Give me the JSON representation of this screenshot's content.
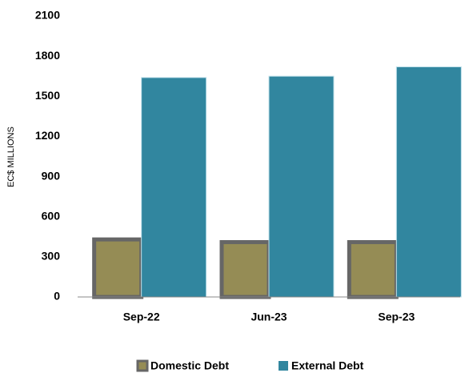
{
  "chart_data": {
    "type": "bar",
    "categories": [
      "Sep-22",
      "Jun-23",
      "Sep-23"
    ],
    "series": [
      {
        "name": "Domestic Debt",
        "color": "#958c55",
        "values": [
          430,
          410,
          410
        ]
      },
      {
        "name": "External Debt",
        "color": "#31869f",
        "values": [
          1640,
          1650,
          1720
        ]
      }
    ],
    "ylabel": "EC$ MILLIONS",
    "ylim": [
      0,
      2100
    ],
    "yticks": [
      0,
      300,
      600,
      900,
      1200,
      1500,
      1800,
      2100
    ],
    "legend": "bottom"
  }
}
